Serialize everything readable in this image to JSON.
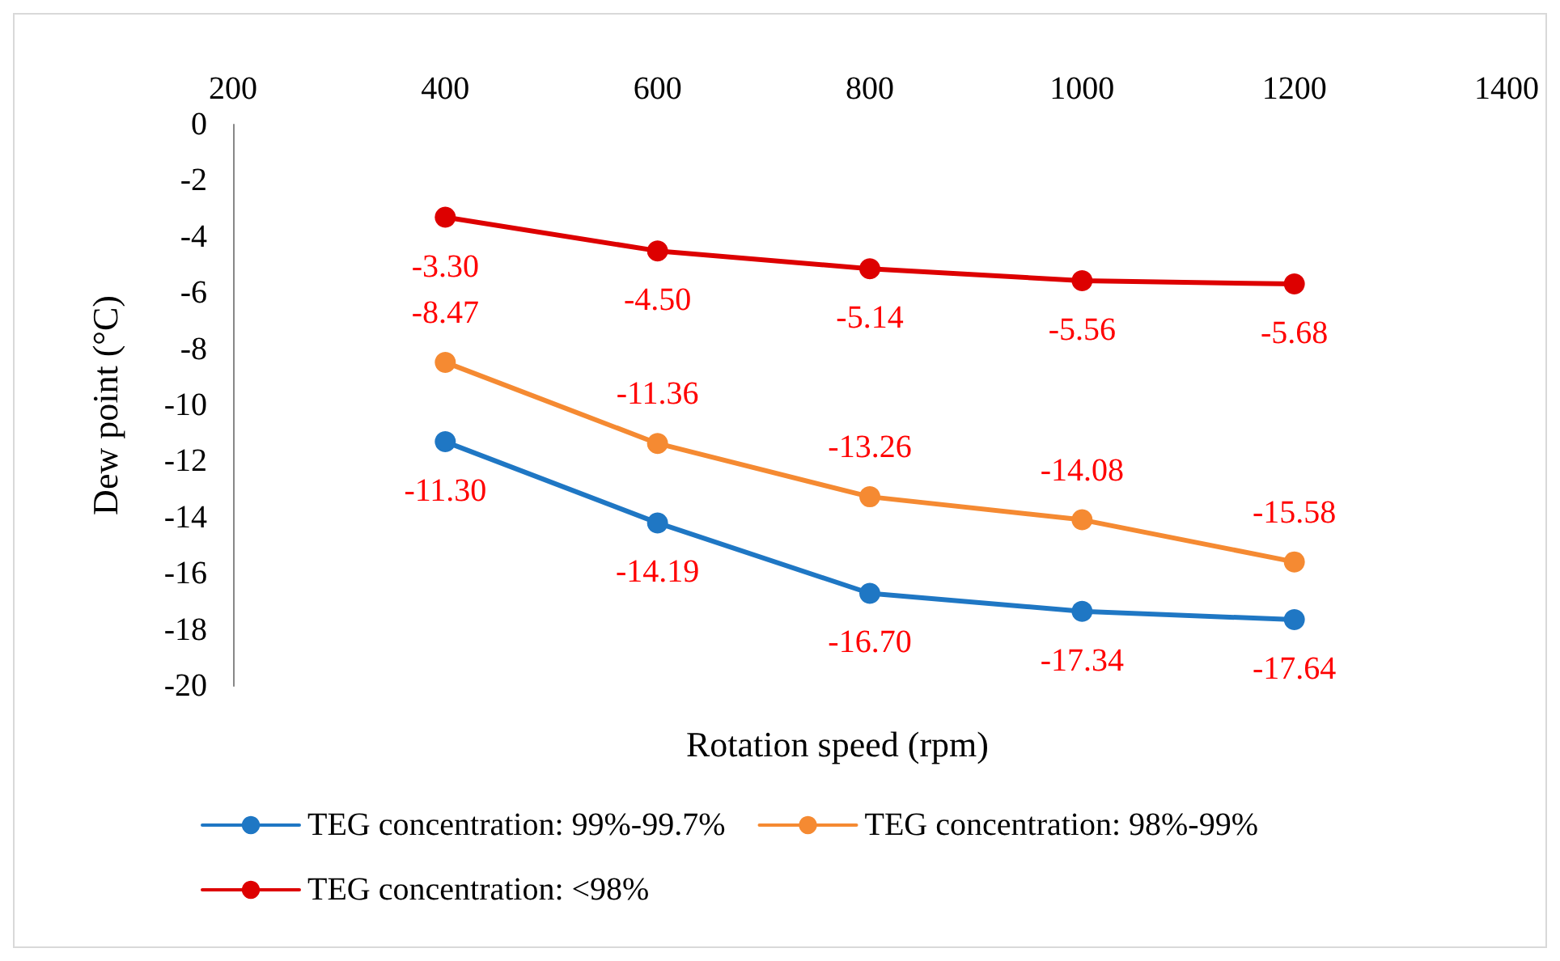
{
  "chart_data": {
    "type": "line",
    "xlabel": "Rotation speed (rpm)",
    "ylabel": "Dew point (°C)",
    "x": [
      400,
      600,
      800,
      1000,
      1200
    ],
    "series": [
      {
        "name": "TEG concentration: 99%-99.7%",
        "color": "#1f77c4",
        "values": [
          -11.3,
          -14.19,
          -16.7,
          -17.34,
          -17.64
        ],
        "value_labels": [
          "-11.30",
          "-14.19",
          "-16.70",
          "-17.34",
          "-17.64"
        ]
      },
      {
        "name": "TEG concentration: 98%-99%",
        "color": "#f58a32",
        "values": [
          -8.47,
          -11.36,
          -13.26,
          -14.08,
          -15.58
        ],
        "value_labels": [
          "-8.47",
          "-11.36",
          "-13.26",
          "-14.08",
          "-15.58"
        ]
      },
      {
        "name": "TEG concentration: <98%",
        "color": "#dd0000",
        "values": [
          -3.3,
          -4.5,
          -5.14,
          -5.56,
          -5.68
        ],
        "value_labels": [
          "-3.30",
          "-4.50",
          "-5.14",
          "-5.56",
          "-5.68"
        ]
      }
    ],
    "xlim": [
      200,
      1400
    ],
    "xticks": [
      200,
      400,
      600,
      800,
      1000,
      1200,
      1400
    ],
    "ylim": [
      -20,
      0
    ],
    "yticks": [
      -20,
      -18,
      -16,
      -14,
      -12,
      -10,
      -8,
      -6,
      -4,
      -2,
      0
    ],
    "grid": false,
    "legend": "bottom",
    "marker": "circle",
    "line_style": "solid"
  }
}
